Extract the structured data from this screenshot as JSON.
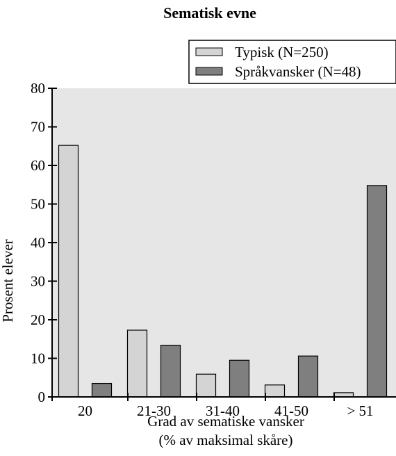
{
  "chart_data": {
    "type": "bar",
    "title": "Sematisk evne",
    "xlabel_lines": [
      "Grad av sematiske vansker",
      "(% av maksimal skåre)"
    ],
    "ylabel": "Prosent elever",
    "categories": [
      "20",
      "21-30",
      "31-40",
      "41-50",
      "> 51"
    ],
    "series": [
      {
        "name": "Typisk (N=250)",
        "color": "#d4d4d4",
        "values": [
          65.2,
          17.3,
          5.9,
          3.1,
          1.1
        ]
      },
      {
        "name": "Språkvansker (N=48)",
        "color": "#7f7f7f",
        "values": [
          3.5,
          13.4,
          9.5,
          10.6,
          54.8
        ]
      }
    ],
    "ylim": [
      0,
      80
    ],
    "yticks": [
      0,
      10,
      20,
      30,
      40,
      50,
      60,
      70,
      80
    ],
    "grid": false,
    "legend_position": "top-right",
    "plot_background": "#e6e6e6"
  }
}
